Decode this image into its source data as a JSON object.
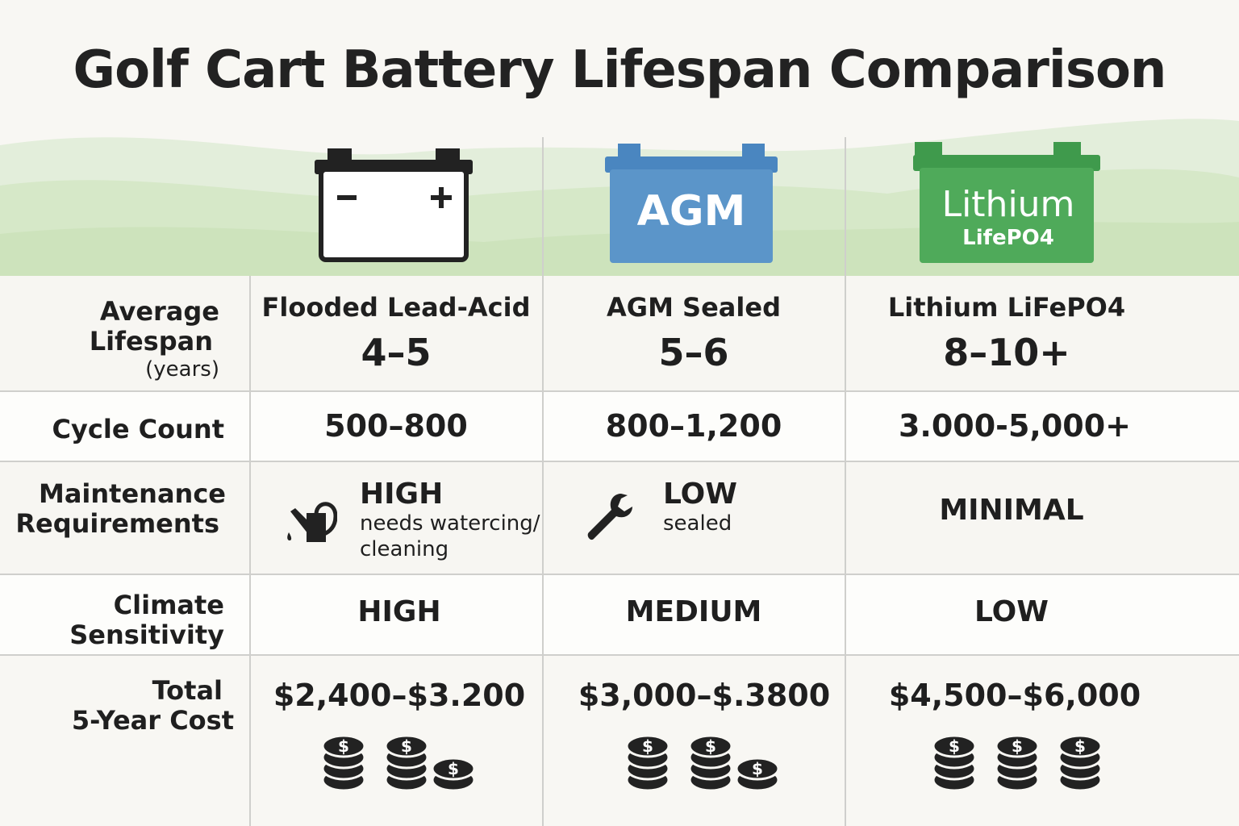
{
  "title": "Golf Cart Battery Lifespan Comparison",
  "colors": {
    "agm": "#5b95c9",
    "lithium": "#4faa5a",
    "hills": "#cfe3bf"
  },
  "badges": {
    "agm": "AGM",
    "lithium_main": "Lithium",
    "lithium_sub": "LifePO4"
  },
  "rows": {
    "lifespan": {
      "label1": "Average",
      "label2": "Lifespan",
      "label3": "(years)"
    },
    "cycle": {
      "label": "Cycle Count"
    },
    "maintenance": {
      "label1": "Maintenance",
      "label2": "Requirements"
    },
    "climate": {
      "label1": "Climate",
      "label2": "Sensitivity"
    },
    "cost": {
      "label1": "Total",
      "label2": "5-Year Cost"
    }
  },
  "columns": [
    {
      "name": "Flooded Lead-Acid",
      "lifespan": "4–5",
      "cycles": "500–800",
      "maintenance": "HIGH",
      "maintenance_note": "needs watercing/ cleaning",
      "maintenance_icon": "watering-can-icon",
      "climate": "HIGH",
      "cost": "$2,400–$3.200",
      "coin_stacks": 2.5
    },
    {
      "name": "AGM Sealed",
      "lifespan": "5–6",
      "cycles": "800–1,200",
      "maintenance": "LOW",
      "maintenance_note": "sealed",
      "maintenance_icon": "wrench-icon",
      "climate": "MEDIUM",
      "cost": "$3,000–$.3800",
      "coin_stacks": 2.5
    },
    {
      "name": "Lithium LiFePO4",
      "lifespan": "8–10+",
      "cycles": "3.000-5,000+",
      "maintenance": "MINIMAL",
      "climate": "LOW",
      "cost": "$4,500–$6,000",
      "coin_stacks": 3
    }
  ]
}
